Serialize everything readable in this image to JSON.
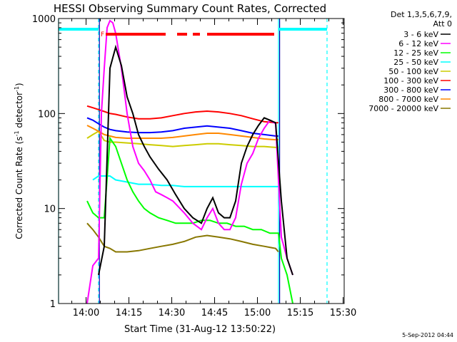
{
  "chart_data": {
    "type": "line",
    "title": "HESSI Observing Summary Count Rates, Corrected",
    "xlabel": "Start Time (31-Aug-12 13:50:22)",
    "ylabel": "Corrected Count Rate (s",
    "ylabel_sup1": "-1",
    "ylabel_mid": " detector",
    "ylabel_sup2": "-1",
    "ylabel_end": ")",
    "x_unit": "minutes after 13:50:22",
    "xlim": [
      0,
      100
    ],
    "ylim": [
      1,
      1000
    ],
    "yscale": "log",
    "x_tick_labels": [
      "14:00",
      "14:15",
      "14:30",
      "14:45",
      "15:00",
      "15:15",
      "15:30"
    ],
    "x_tick_positions": [
      9.633,
      24.633,
      39.633,
      54.633,
      69.633,
      84.633,
      99.633
    ],
    "y_tick_labels": [
      "1",
      "10",
      "100",
      "1000"
    ],
    "y_tick_values": [
      1,
      10,
      100,
      1000
    ],
    "legend_header": [
      "Det 1,3,5,6,7,9,",
      "Att 0"
    ],
    "legend_position": "right",
    "date_stamp": "5-Sep-2012 04:44",
    "flare_marker": "F",
    "series": [
      {
        "name": "3 - 6 keV",
        "color": "#000000",
        "x": [
          14,
          16,
          18,
          20,
          22,
          24,
          26,
          28,
          30,
          32,
          35,
          38,
          41,
          44,
          47,
          50,
          52,
          54,
          56,
          58,
          60,
          62,
          64,
          66,
          68,
          70,
          72,
          74,
          76,
          78,
          80,
          82
        ],
        "y": [
          2,
          4,
          300,
          500,
          320,
          150,
          100,
          60,
          45,
          35,
          26,
          20,
          14,
          10,
          8,
          7,
          10,
          13,
          9,
          8,
          8,
          12,
          30,
          45,
          60,
          75,
          90,
          85,
          80,
          12,
          3,
          2
        ]
      },
      {
        "name": "6 - 12 keV",
        "color": "#ff00ff",
        "x": [
          10,
          12,
          14,
          15,
          16,
          17,
          18,
          19,
          20,
          22,
          24,
          26,
          28,
          30,
          32,
          34,
          36,
          38,
          40,
          44,
          47,
          50,
          52,
          54,
          56,
          58,
          60,
          62,
          64,
          66,
          68,
          70,
          72,
          74,
          76,
          78,
          80,
          82
        ],
        "y": [
          1,
          2.5,
          3,
          100,
          300,
          800,
          950,
          900,
          700,
          300,
          100,
          45,
          30,
          25,
          20,
          15,
          14,
          13,
          12,
          9,
          7,
          6,
          8,
          10,
          7,
          6,
          6,
          8,
          18,
          30,
          38,
          55,
          70,
          85,
          78,
          5,
          3,
          2
        ]
      },
      {
        "name": "12 - 25 keV",
        "color": "#00ff00",
        "x": [
          10,
          12,
          14,
          16,
          18,
          20,
          22,
          24,
          26,
          28,
          30,
          32,
          35,
          38,
          41,
          44,
          47,
          50,
          53,
          56,
          59,
          62,
          65,
          68,
          71,
          74,
          76,
          77,
          78,
          80,
          82
        ],
        "y": [
          12,
          9,
          8,
          8,
          55,
          45,
          30,
          20,
          15,
          12,
          10,
          9,
          8,
          7.5,
          7,
          7,
          7,
          7.5,
          7.5,
          7,
          7,
          6.5,
          6.5,
          6,
          6,
          5.5,
          5.5,
          5.5,
          3,
          2,
          1
        ]
      },
      {
        "name": "25 - 50 keV",
        "color": "#00ffff",
        "x": [
          12,
          14,
          16,
          18,
          20,
          24,
          28,
          32,
          36,
          40,
          44,
          48,
          52,
          56,
          60,
          64,
          68,
          72,
          76,
          77
        ],
        "y": [
          20,
          22,
          22,
          22,
          20,
          19,
          18,
          18,
          17.5,
          17.5,
          17,
          17,
          17,
          17,
          17,
          17,
          17,
          17,
          17,
          17
        ]
      },
      {
        "name": "50 - 100 keV",
        "color": "#cccc00",
        "x": [
          10,
          12,
          14,
          16,
          18,
          20,
          24,
          28,
          32,
          36,
          40,
          44,
          48,
          52,
          56,
          60,
          64,
          68,
          72,
          76,
          77
        ],
        "y": [
          55,
          60,
          65,
          52,
          50,
          50,
          49,
          48,
          47,
          46,
          45,
          46,
          47,
          48,
          48,
          47,
          46,
          45,
          45,
          44,
          44
        ]
      },
      {
        "name": "100 - 300 keV",
        "color": "#ff0000",
        "x": [
          10,
          12,
          14,
          16,
          18,
          20,
          24,
          28,
          32,
          36,
          40,
          44,
          48,
          52,
          56,
          60,
          64,
          68,
          72,
          76,
          77
        ],
        "y": [
          120,
          115,
          110,
          105,
          100,
          98,
          92,
          88,
          88,
          90,
          95,
          100,
          104,
          106,
          104,
          100,
          95,
          88,
          82,
          80,
          80
        ]
      },
      {
        "name": "300 - 800 keV",
        "color": "#0000ff",
        "x": [
          10,
          12,
          14,
          16,
          18,
          20,
          24,
          28,
          32,
          36,
          40,
          44,
          48,
          52,
          56,
          60,
          64,
          68,
          72,
          76,
          77
        ],
        "y": [
          90,
          85,
          78,
          72,
          68,
          66,
          64,
          63,
          63,
          64,
          66,
          70,
          72,
          74,
          72,
          70,
          66,
          62,
          60,
          58,
          58
        ]
      },
      {
        "name": "800 - 7000 keV",
        "color": "#ff8800",
        "x": [
          10,
          12,
          14,
          16,
          18,
          20,
          24,
          28,
          32,
          36,
          40,
          44,
          48,
          52,
          56,
          60,
          64,
          68,
          72,
          76,
          77
        ],
        "y": [
          75,
          70,
          65,
          60,
          58,
          56,
          55,
          55,
          55,
          55,
          56,
          58,
          60,
          62,
          62,
          60,
          58,
          56,
          54,
          53,
          53
        ]
      },
      {
        "name": "7000 - 20000 keV",
        "color": "#887700",
        "x": [
          10,
          12,
          14,
          16,
          18,
          20,
          24,
          28,
          32,
          36,
          40,
          44,
          48,
          52,
          56,
          60,
          64,
          68,
          72,
          76,
          77
        ],
        "y": [
          7,
          6,
          5,
          4,
          3.8,
          3.5,
          3.5,
          3.6,
          3.8,
          4,
          4.2,
          4.5,
          5,
          5.2,
          5,
          4.8,
          4.5,
          4.2,
          4,
          3.8,
          3.5
        ]
      }
    ],
    "attenuator_segments": [
      {
        "x0": 0,
        "x1": 14,
        "color": "#00ffff",
        "style": "solid"
      },
      {
        "x0": 77,
        "x1": 94,
        "color": "#00ffff",
        "style": "solid"
      }
    ],
    "flare_segments": [
      {
        "x0": 16.5,
        "x1": 37.5,
        "color": "#ff0000"
      },
      {
        "x0": 41.5,
        "x1": 45,
        "color": "#ff0000"
      },
      {
        "x0": 47,
        "x1": 49.5,
        "color": "#ff0000"
      },
      {
        "x0": 52,
        "x1": 75.5,
        "color": "#ff0000"
      }
    ],
    "vertical_markers": [
      {
        "x": 0,
        "color": "#00ffff",
        "style": "solid"
      },
      {
        "x": 14,
        "color": "#00ffff",
        "style": "dashed"
      },
      {
        "x": 14.3,
        "color": "#0000aa",
        "style": "solid"
      },
      {
        "x": 77,
        "color": "#00ffff",
        "style": "solid"
      },
      {
        "x": 77.4,
        "color": "#0000aa",
        "style": "solid"
      },
      {
        "x": 94,
        "color": "#00ffff",
        "style": "dashed"
      }
    ],
    "grid": false
  }
}
